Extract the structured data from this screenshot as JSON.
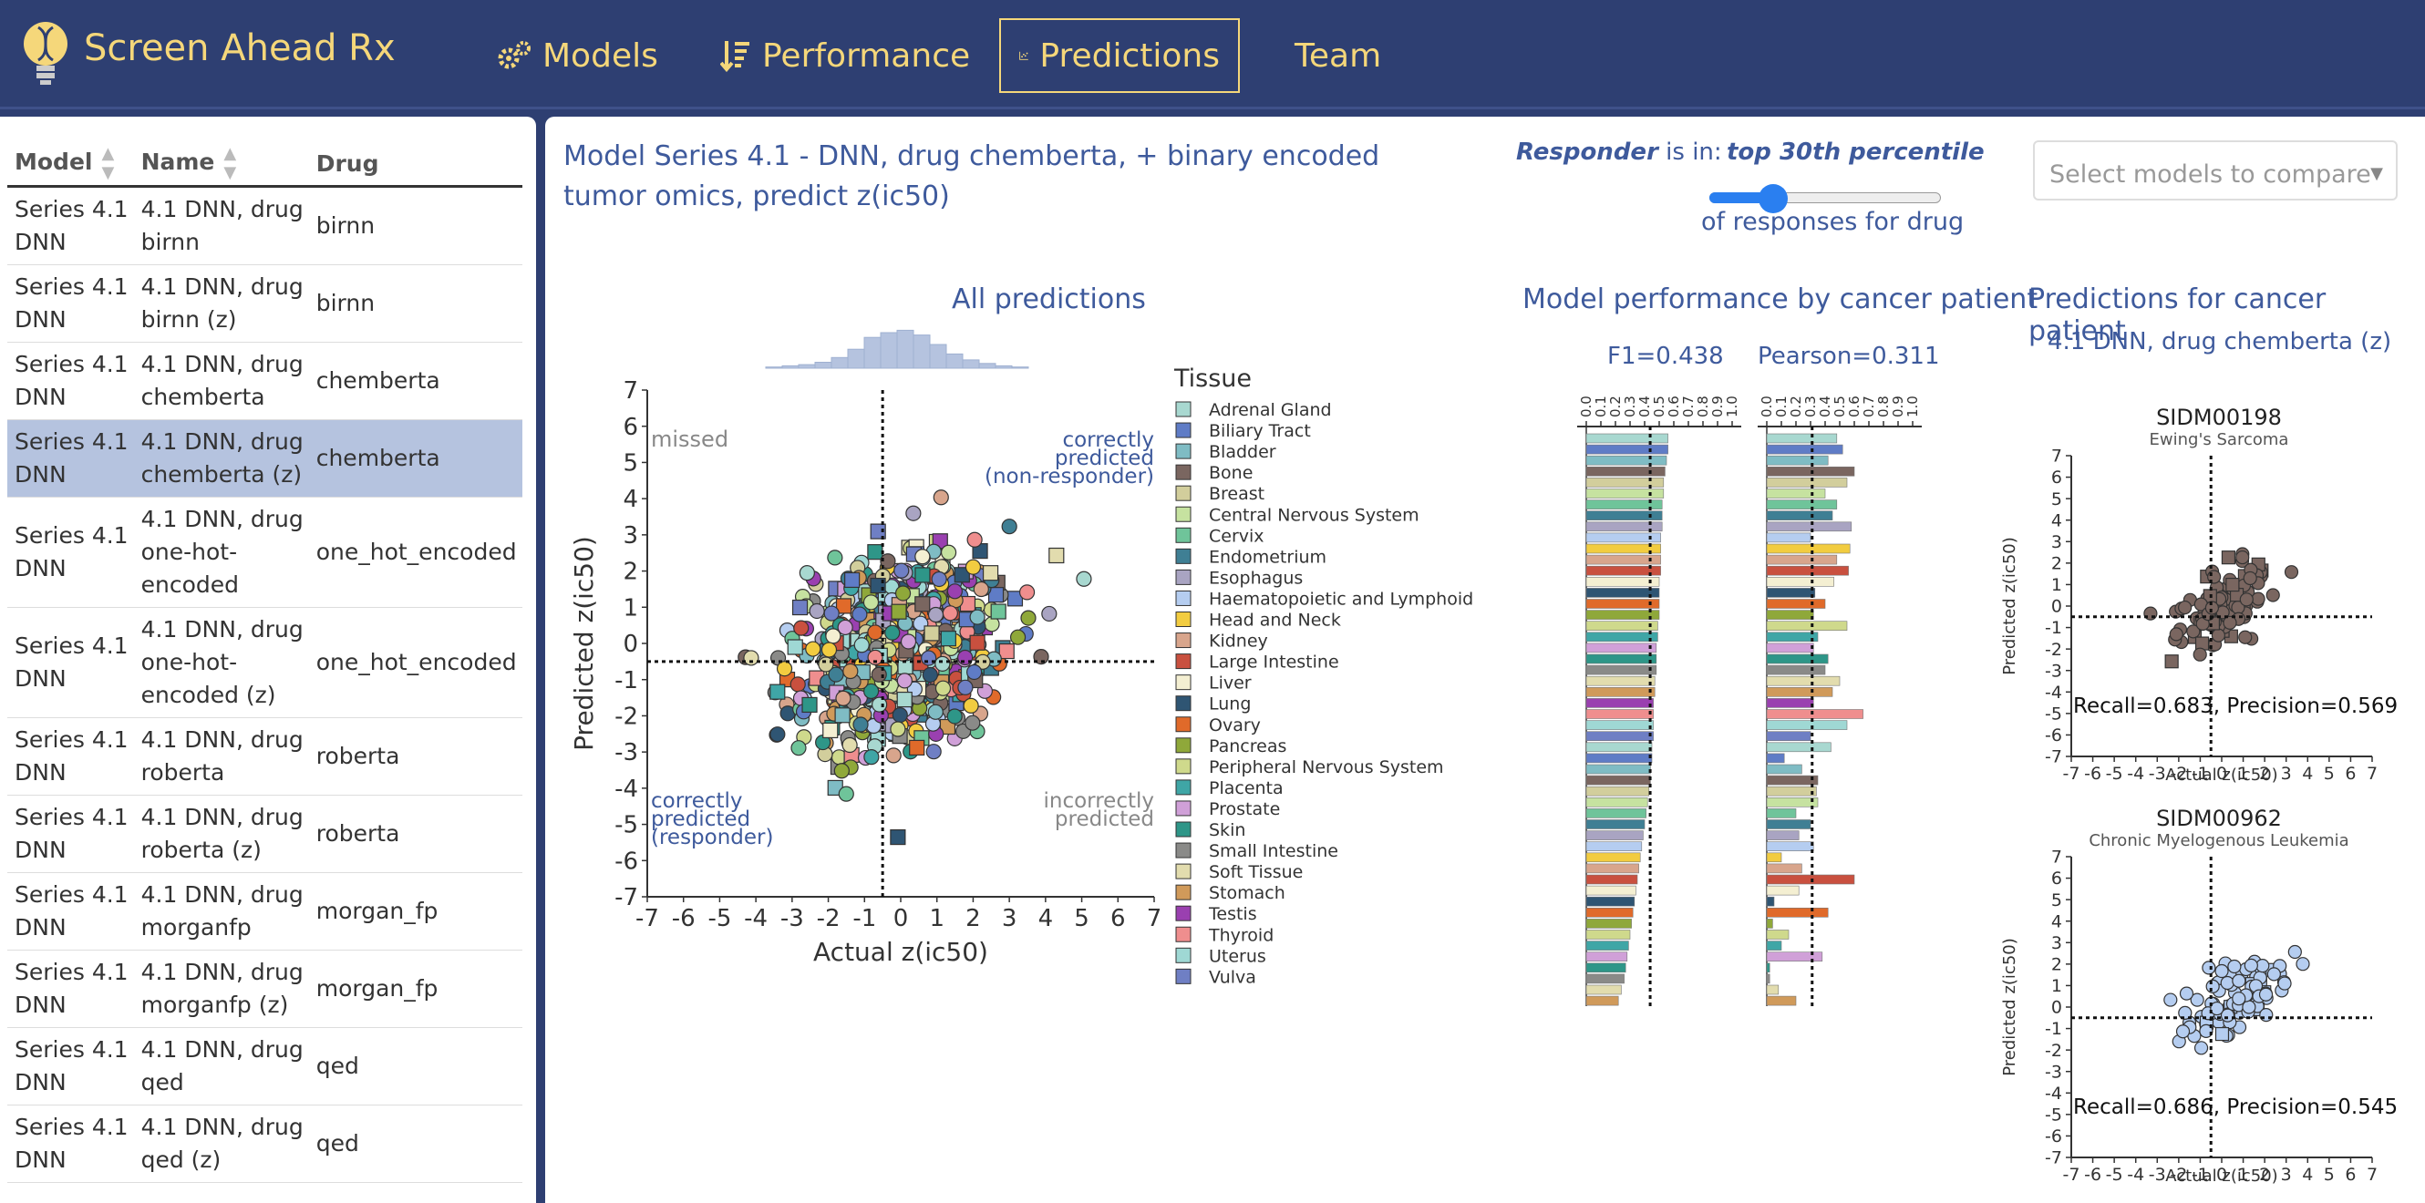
{
  "nav": {
    "brand": "Screen Ahead Rx",
    "items": [
      {
        "label": "Models",
        "icon": "gears-icon"
      },
      {
        "label": "Performance",
        "icon": "sort-icon"
      },
      {
        "label": "Predictions",
        "icon": "chart-icon",
        "active": true
      },
      {
        "label": "Team"
      }
    ]
  },
  "table": {
    "headers": [
      "Model",
      "Name",
      "Drug"
    ],
    "rows": [
      {
        "model": [
          "Series 4.1",
          "DNN"
        ],
        "name": [
          "4.1 DNN, drug",
          "birnn"
        ],
        "drug": "birnn"
      },
      {
        "model": [
          "Series 4.1",
          "DNN"
        ],
        "name": [
          "4.1 DNN, drug",
          "birnn (z)"
        ],
        "drug": "birnn"
      },
      {
        "model": [
          "Series 4.1",
          "DNN"
        ],
        "name": [
          "4.1 DNN, drug",
          "chemberta"
        ],
        "drug": "chemberta"
      },
      {
        "model": [
          "Series 4.1",
          "DNN"
        ],
        "name": [
          "4.1 DNN, drug",
          "chemberta (z)"
        ],
        "drug": "chemberta",
        "selected": true
      },
      {
        "model": [
          "Series 4.1",
          "DNN"
        ],
        "name": [
          "4.1 DNN, drug",
          "one-hot-",
          "encoded"
        ],
        "drug": "one_hot_encoded"
      },
      {
        "model": [
          "Series 4.1",
          "DNN"
        ],
        "name": [
          "4.1 DNN, drug",
          "one-hot-",
          "encoded (z)"
        ],
        "drug": "one_hot_encoded"
      },
      {
        "model": [
          "Series 4.1",
          "DNN"
        ],
        "name": [
          "4.1 DNN, drug",
          "roberta"
        ],
        "drug": "roberta"
      },
      {
        "model": [
          "Series 4.1",
          "DNN"
        ],
        "name": [
          "4.1 DNN, drug",
          "roberta (z)"
        ],
        "drug": "roberta"
      },
      {
        "model": [
          "Series 4.1",
          "DNN"
        ],
        "name": [
          "4.1 DNN, drug",
          "morganfp"
        ],
        "drug": "morgan_fp"
      },
      {
        "model": [
          "Series 4.1",
          "DNN"
        ],
        "name": [
          "4.1 DNN, drug",
          "morganfp (z)"
        ],
        "drug": "morgan_fp"
      },
      {
        "model": [
          "Series 4.1",
          "DNN"
        ],
        "name": [
          "4.1 DNN, drug",
          "qed"
        ],
        "drug": "qed"
      },
      {
        "model": [
          "Series 4.1",
          "DNN"
        ],
        "name": [
          "4.1 DNN, drug",
          "qed (z)"
        ],
        "drug": "qed"
      }
    ]
  },
  "main": {
    "title": "Model Series 4.1 - DNN, drug chemberta, + binary encoded tumor omics, predict z(ic50)",
    "responder_word": "Responder",
    "responder_rest": " is in:",
    "percentile": "top 30th percentile",
    "slider_value": 0.3,
    "of_responses": "of responses for drug",
    "compare_placeholder": "Select models to compare",
    "all_title": "All predictions",
    "perf_title": "Model performance by cancer patient",
    "patient_title": "Predictions for cancer patient",
    "patient_subtitle": "4.1 DNN, drug chemberta (z)"
  },
  "chart_data": [
    {
      "type": "scatter",
      "title": "All predictions",
      "xlabel": "Actual z(ic50)",
      "ylabel": "Predicted z(ic50)",
      "xlim": [
        -7,
        7
      ],
      "ylim": [
        -7,
        7
      ],
      "threshold_x": -0.5,
      "threshold_y": -0.5,
      "annotations": {
        "top_left": "missed",
        "top_right": [
          "correctly",
          "predicted",
          "(non-responder)"
        ],
        "bottom_left": [
          "correctly",
          "predicted",
          "(responder)"
        ],
        "bottom_right": [
          "incorrectly",
          "predicted"
        ]
      },
      "legend_title": "Tissue",
      "legend": [
        {
          "name": "Adrenal Gland",
          "color": "#a8d8d0"
        },
        {
          "name": "Biliary Tract",
          "color": "#5f7cc6"
        },
        {
          "name": "Bladder",
          "color": "#7fbcc4"
        },
        {
          "name": "Bone",
          "color": "#7a6660"
        },
        {
          "name": "Breast",
          "color": "#d2ce9c"
        },
        {
          "name": "Central Nervous System",
          "color": "#c6e2a0"
        },
        {
          "name": "Cervix",
          "color": "#6fc49a"
        },
        {
          "name": "Endometrium",
          "color": "#3f7f94"
        },
        {
          "name": "Esophagus",
          "color": "#a9a4c2"
        },
        {
          "name": "Haematopoietic and Lymphoid",
          "color": "#b5cdf0"
        },
        {
          "name": "Head and Neck",
          "color": "#f2cc40"
        },
        {
          "name": "Kidney",
          "color": "#d8a58c"
        },
        {
          "name": "Large Intestine",
          "color": "#c9503f"
        },
        {
          "name": "Liver",
          "color": "#f4efd2"
        },
        {
          "name": "Lung",
          "color": "#2f5573"
        },
        {
          "name": "Ovary",
          "color": "#e06a2a"
        },
        {
          "name": "Pancreas",
          "color": "#8fa83a"
        },
        {
          "name": "Peripheral Nervous System",
          "color": "#cfd98c"
        },
        {
          "name": "Placenta",
          "color": "#3fa6a6"
        },
        {
          "name": "Prostate",
          "color": "#d0a0d8"
        },
        {
          "name": "Skin",
          "color": "#2e9688"
        },
        {
          "name": "Small Intestine",
          "color": "#8a8a88"
        },
        {
          "name": "Soft Tissue",
          "color": "#e2dcae"
        },
        {
          "name": "Stomach",
          "color": "#d09a5a"
        },
        {
          "name": "Testis",
          "color": "#9a40b0"
        },
        {
          "name": "Thyroid",
          "color": "#ef8e8e"
        },
        {
          "name": "Uterus",
          "color": "#9fd8d4"
        },
        {
          "name": "Vulva",
          "color": "#6f7fc4"
        }
      ]
    },
    {
      "type": "bar",
      "title": "F1=0.438",
      "orientation": "horizontal",
      "xlim": [
        0,
        1
      ],
      "ticks": [
        "0.0",
        "0.1",
        "0.2",
        "0.3",
        "0.4",
        "0.5",
        "0.6",
        "0.7",
        "0.8",
        "0.9",
        "1.0"
      ],
      "threshold": 0.438,
      "values": [
        0.56,
        0.56,
        0.55,
        0.54,
        0.53,
        0.53,
        0.52,
        0.52,
        0.52,
        0.51,
        0.51,
        0.51,
        0.51,
        0.5,
        0.5,
        0.5,
        0.5,
        0.49,
        0.49,
        0.48,
        0.48,
        0.48,
        0.47,
        0.47,
        0.46,
        0.46,
        0.46,
        0.46,
        0.45,
        0.45,
        0.44,
        0.44,
        0.43,
        0.42,
        0.41,
        0.4,
        0.39,
        0.38,
        0.37,
        0.36,
        0.35,
        0.34,
        0.33,
        0.32,
        0.31,
        0.3,
        0.29,
        0.28,
        0.27,
        0.26,
        0.24,
        0.22
      ]
    },
    {
      "type": "bar",
      "title": "Pearson=0.311",
      "orientation": "horizontal",
      "xlim": [
        0,
        1
      ],
      "ticks": [
        "0.0",
        "0.1",
        "0.2",
        "0.3",
        "0.4",
        "0.5",
        "0.6",
        "0.7",
        "0.8",
        "0.9",
        "1.0"
      ],
      "threshold": 0.311,
      "values": [
        0.48,
        0.52,
        0.42,
        0.6,
        0.55,
        0.4,
        0.48,
        0.45,
        0.58,
        0.3,
        0.57,
        0.48,
        0.56,
        0.46,
        0.33,
        0.4,
        0.32,
        0.55,
        0.35,
        0.32,
        0.42,
        0.4,
        0.5,
        0.45,
        0.32,
        0.66,
        0.55,
        0.3,
        0.44,
        0.12,
        0.24,
        0.35,
        0.34,
        0.35,
        0.2,
        0.3,
        0.22,
        0.32,
        0.1,
        0.24,
        0.6,
        0.22,
        0.05,
        0.42,
        0.04,
        0.15,
        0.1,
        0.38,
        0.02,
        0.02,
        0.08,
        0.2
      ]
    },
    {
      "type": "scatter",
      "title": "SIDM00198",
      "subtitle": "Ewing's Sarcoma",
      "xlabel": "Actual z(ic50)",
      "ylabel": "Predicted z(ic50)",
      "xlim": [
        -7,
        7
      ],
      "ylim": [
        -7,
        7
      ],
      "metrics": "Recall=0.683, Precision=0.569",
      "color": "#7a6660"
    },
    {
      "type": "scatter",
      "title": "SIDM00962",
      "subtitle": "Chronic Myelogenous Leukemia",
      "xlabel": "Actual z(ic50)",
      "ylabel": "Predicted z(ic50)",
      "xlim": [
        -7,
        7
      ],
      "ylim": [
        -7,
        7
      ],
      "metrics": "Recall=0.686, Precision=0.545",
      "color": "#b5cdf0"
    }
  ]
}
